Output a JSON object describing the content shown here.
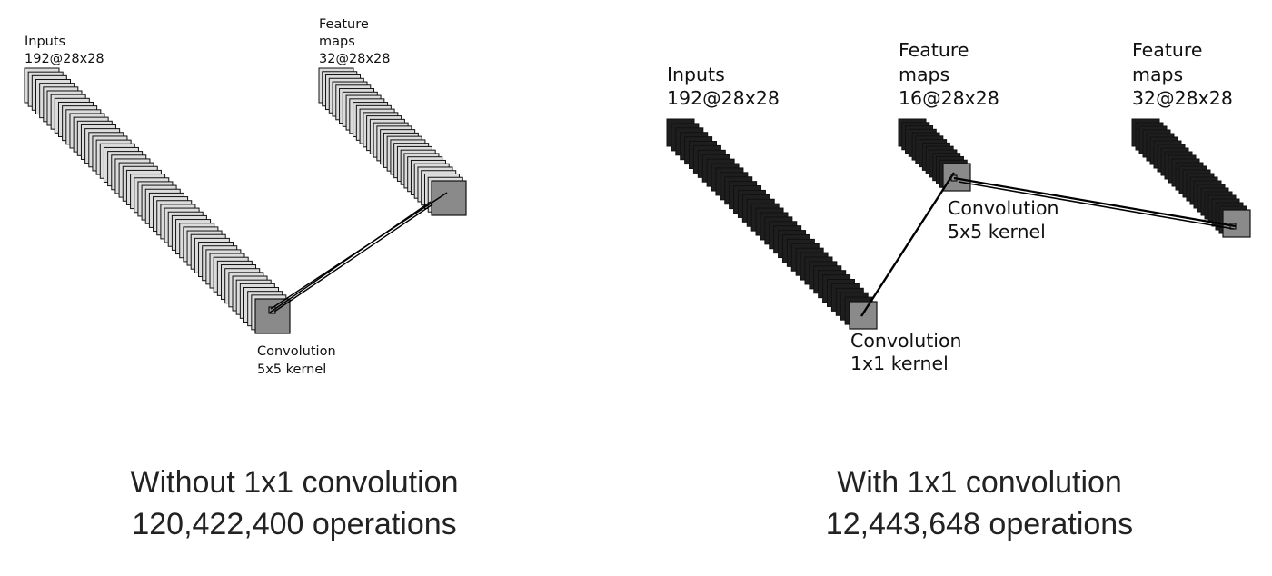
{
  "panels": [
    {
      "id": "without",
      "labels": {
        "inputs": [
          "Inputs",
          "192@28x28"
        ],
        "feature_maps": [
          "Feature",
          "maps",
          "32@28x28"
        ],
        "convolution": [
          "Convolution",
          "5x5 kernel"
        ]
      },
      "caption": [
        "Without 1x1 convolution",
        "120,422,400 operations"
      ]
    },
    {
      "id": "with",
      "labels": {
        "inputs": [
          "Inputs",
          "192@28x28"
        ],
        "conv_1x1": [
          "Convolution",
          "1x1 kernel"
        ],
        "feature_maps_16": [
          "Feature",
          "maps",
          "16@28x28"
        ],
        "conv_5x5": [
          "Convolution",
          "5x5 kernel"
        ],
        "feature_maps_32": [
          "Feature",
          "maps",
          "32@28x28"
        ]
      },
      "caption": [
        "With 1x1 convolution",
        "12,443,648 operations"
      ]
    }
  ],
  "colors": {
    "layer_fill": "#dcdcdc",
    "layer_stroke": "#111111",
    "dark_fill": "#1e1e1e",
    "last_fill": "#8a8a8a",
    "line": "#000000"
  }
}
